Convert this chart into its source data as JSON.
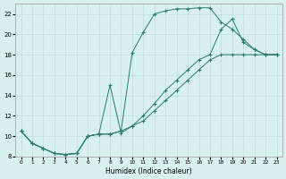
{
  "xlabel": "Humidex (Indice chaleur)",
  "bg_color": "#d8f0f0",
  "grid_color": "#c0dcdc",
  "line_color": "#2d7a6a",
  "xlim": [
    -0.5,
    23.5
  ],
  "ylim": [
    8,
    23
  ],
  "xticks": [
    0,
    1,
    2,
    3,
    4,
    5,
    6,
    7,
    8,
    9,
    10,
    11,
    12,
    13,
    14,
    15,
    16,
    17,
    18,
    19,
    20,
    21,
    22,
    23
  ],
  "yticks": [
    8,
    10,
    12,
    14,
    16,
    18,
    20,
    22
  ],
  "line1_x": [
    0,
    1,
    2,
    3,
    4,
    5,
    6,
    7,
    8,
    9,
    10,
    11,
    12,
    13,
    14,
    15,
    16,
    17,
    18,
    19,
    20,
    21,
    22,
    23
  ],
  "line1_y": [
    10.5,
    9.3,
    8.8,
    8.3,
    8.2,
    8.3,
    10.0,
    10.2,
    10.2,
    10.5,
    18.2,
    20.2,
    22.0,
    22.3,
    22.5,
    22.5,
    22.6,
    22.6,
    21.2,
    20.5,
    19.5,
    18.5,
    18.0,
    18.0
  ],
  "line2_x": [
    0,
    1,
    2,
    3,
    4,
    5,
    6,
    7,
    8,
    9,
    10,
    11,
    12,
    13,
    14,
    15,
    16,
    17,
    18,
    19,
    20,
    21,
    22,
    23
  ],
  "line2_y": [
    10.5,
    9.3,
    8.8,
    8.3,
    8.2,
    8.3,
    10.0,
    10.2,
    15.0,
    10.3,
    11.0,
    12.0,
    13.2,
    14.5,
    15.5,
    16.5,
    17.5,
    18.0,
    20.5,
    21.5,
    19.2,
    18.5,
    18.0,
    18.0
  ],
  "line3_x": [
    0,
    1,
    2,
    3,
    4,
    5,
    6,
    7,
    8,
    9,
    10,
    11,
    12,
    13,
    14,
    15,
    16,
    17,
    18,
    19,
    20,
    21,
    22,
    23
  ],
  "line3_y": [
    10.5,
    9.3,
    8.8,
    8.3,
    8.2,
    8.3,
    10.0,
    10.2,
    10.2,
    10.5,
    11.0,
    11.5,
    12.5,
    13.5,
    14.5,
    15.5,
    16.5,
    17.5,
    18.0,
    18.0,
    18.0,
    18.0,
    18.0,
    18.0
  ]
}
